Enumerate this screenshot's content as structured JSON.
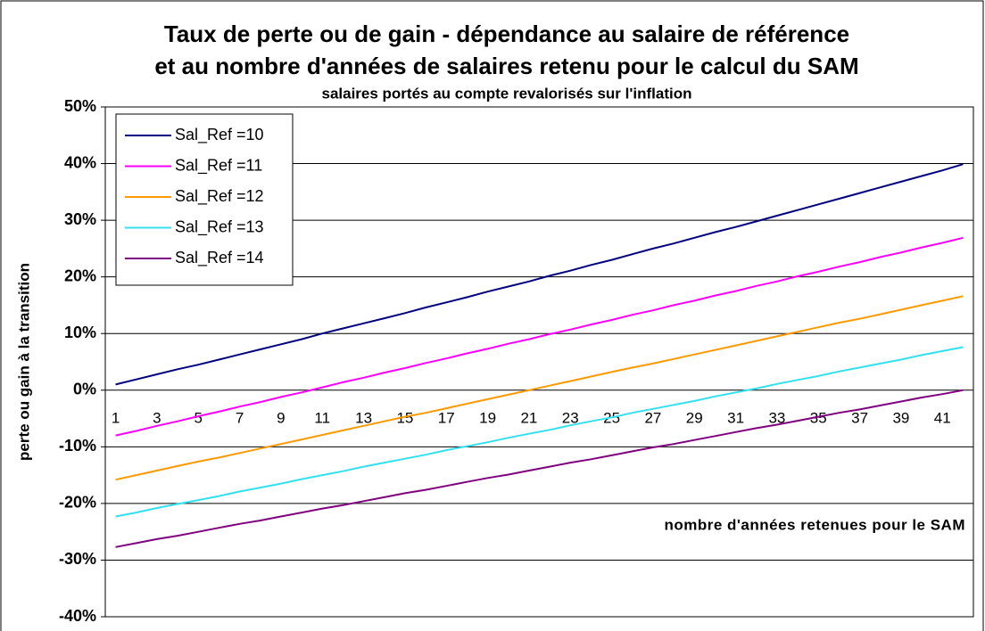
{
  "chart_data": {
    "type": "line",
    "title": [
      "Taux de perte ou de gain - dépendance au salaire de référence",
      "et au nombre d'années de salaires retenu pour le calcul du SAM"
    ],
    "subtitle": "salaires portés au compte revalorisés sur l'inflation",
    "x_label": "nombre d'années retenues pour le SAM",
    "y_label": "perte ou gain à la transition",
    "categories": [
      1,
      null,
      3,
      null,
      5,
      null,
      7,
      null,
      9,
      null,
      11,
      null,
      13,
      null,
      15,
      null,
      17,
      null,
      19,
      null,
      21,
      null,
      23,
      null,
      25,
      null,
      27,
      null,
      29,
      null,
      31,
      null,
      33,
      null,
      35,
      null,
      37,
      null,
      39,
      null,
      41,
      null
    ],
    "series": [
      {
        "name": "Sal_Ref =10",
        "color": "#000080",
        "values": [
          1.0,
          1.9,
          2.8,
          3.7,
          4.5,
          5.4,
          6.3,
          7.2,
          8.1,
          9.0,
          10.0,
          10.9,
          11.8,
          12.7,
          13.6,
          14.6,
          15.5,
          16.4,
          17.4,
          18.3,
          19.2,
          20.2,
          21.1,
          22.1,
          23.0,
          24.0,
          25.0,
          25.9,
          26.9,
          27.9,
          28.8,
          29.8,
          30.8,
          31.8,
          32.8,
          33.8,
          34.8,
          35.8,
          36.8,
          37.8,
          38.8,
          39.9
        ]
      },
      {
        "name": "Sal_Ref =11",
        "color": "#ff00ff",
        "values": [
          -8.0,
          -7.2,
          -6.3,
          -5.5,
          -4.6,
          -3.8,
          -2.9,
          -2.1,
          -1.2,
          -0.4,
          0.5,
          1.4,
          2.2,
          3.1,
          3.9,
          4.8,
          5.6,
          6.5,
          7.3,
          8.2,
          9.0,
          9.9,
          10.7,
          11.6,
          12.4,
          13.3,
          14.1,
          15.0,
          15.8,
          16.7,
          17.5,
          18.4,
          19.2,
          20.1,
          20.9,
          21.8,
          22.6,
          23.5,
          24.3,
          25.2,
          26.0,
          26.9
        ]
      },
      {
        "name": "Sal_Ref =12",
        "color": "#ff9900",
        "values": [
          -15.8,
          -15.0,
          -14.2,
          -13.4,
          -12.6,
          -11.9,
          -11.1,
          -10.3,
          -9.5,
          -8.7,
          -7.9,
          -7.1,
          -6.3,
          -5.5,
          -4.7,
          -4.0,
          -3.2,
          -2.4,
          -1.6,
          -0.8,
          0.0,
          0.8,
          1.6,
          2.4,
          3.2,
          4.0,
          4.7,
          5.5,
          6.3,
          7.1,
          7.9,
          8.7,
          9.5,
          10.3,
          11.1,
          11.9,
          12.6,
          13.4,
          14.2,
          15.0,
          15.8,
          16.6
        ]
      },
      {
        "name": "Sal_Ref =13",
        "color": "#33e0f0",
        "values": [
          -22.3,
          -21.6,
          -20.8,
          -20.1,
          -19.4,
          -18.7,
          -17.9,
          -17.2,
          -16.5,
          -15.7,
          -15.0,
          -14.3,
          -13.5,
          -12.8,
          -12.1,
          -11.4,
          -10.6,
          -9.9,
          -9.2,
          -8.4,
          -7.7,
          -7.0,
          -6.2,
          -5.5,
          -4.8,
          -4.0,
          -3.3,
          -2.6,
          -1.9,
          -1.1,
          -0.4,
          0.3,
          1.1,
          1.8,
          2.5,
          3.3,
          4.0,
          4.7,
          5.4,
          6.2,
          6.9,
          7.6
        ]
      },
      {
        "name": "Sal_Ref =14",
        "color": "#800080",
        "values": [
          -27.7,
          -27.0,
          -26.3,
          -25.7,
          -25.0,
          -24.3,
          -23.6,
          -23.0,
          -22.3,
          -21.6,
          -20.9,
          -20.3,
          -19.6,
          -18.9,
          -18.2,
          -17.6,
          -16.9,
          -16.2,
          -15.5,
          -14.9,
          -14.2,
          -13.5,
          -12.8,
          -12.2,
          -11.5,
          -10.8,
          -10.1,
          -9.5,
          -8.8,
          -8.1,
          -7.4,
          -6.7,
          -6.1,
          -5.4,
          -4.7,
          -4.0,
          -3.4,
          -2.7,
          -2.0,
          -1.3,
          -0.7,
          0.0
        ]
      }
    ],
    "ylim": [
      -40,
      50
    ],
    "yticks": [
      {
        "value": -40,
        "label": "-40%"
      },
      {
        "value": -30,
        "label": "-30%"
      },
      {
        "value": -20,
        "label": "-20%"
      },
      {
        "value": -10,
        "label": "-10%"
      },
      {
        "value": 0,
        "label": "0%"
      },
      {
        "value": 10,
        "label": "10%"
      },
      {
        "value": 20,
        "label": "20%"
      },
      {
        "value": 30,
        "label": "30%"
      },
      {
        "value": 40,
        "label": "40%"
      },
      {
        "value": 50,
        "label": "50%"
      }
    ],
    "grid": true,
    "legend": "upper left"
  }
}
